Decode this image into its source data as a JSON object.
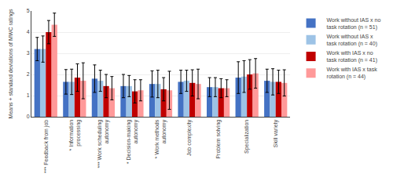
{
  "chart_data": {
    "type": "bar",
    "categories": [
      "*** Feedback from job",
      "* Information\nprocessing",
      "*** Work scheduling\nautonomy",
      "* Decision-making\nautonomy",
      "* Work methods\nautonomy",
      "Job complexity",
      "Problem solving",
      "Specialization",
      "Skill variety"
    ],
    "series": [
      {
        "name": "Work without IAS x no\ntask rotation (n = 51)",
        "color": "#4472C4",
        "values": [
          3.2,
          1.65,
          1.8,
          1.45,
          1.55,
          1.65,
          1.4,
          1.85,
          1.7
        ],
        "errors": [
          0.55,
          0.58,
          0.65,
          0.55,
          0.62,
          0.55,
          0.45,
          0.75,
          0.55
        ]
      },
      {
        "name": "Work without IAS x\ntask rotation (n = 40)",
        "color": "#9DC3E6",
        "values": [
          3.2,
          1.65,
          1.7,
          1.45,
          1.55,
          1.7,
          1.4,
          1.9,
          1.65
        ],
        "errors": [
          0.62,
          0.6,
          0.5,
          0.5,
          0.65,
          0.5,
          0.45,
          0.75,
          0.62
        ]
      },
      {
        "name": "Work with IAS x no\ntask rotation (n = 41)",
        "color": "#C00000",
        "values": [
          4.0,
          1.85,
          1.45,
          1.2,
          1.3,
          1.6,
          1.35,
          2.0,
          1.65
        ],
        "errors": [
          0.55,
          0.65,
          0.55,
          0.55,
          0.55,
          0.62,
          0.45,
          0.7,
          0.55
        ]
      },
      {
        "name": "Work with IAS x task\nrotation (n = 44)",
        "color": "#FF9999",
        "values": [
          4.35,
          1.7,
          1.35,
          1.25,
          1.25,
          1.55,
          1.35,
          2.05,
          1.6
        ],
        "errors": [
          0.55,
          0.85,
          0.55,
          0.5,
          0.9,
          0.7,
          0.4,
          0.7,
          0.62
        ]
      }
    ],
    "ylabel": "Means + standard deviations of MWC ratings",
    "ylim": [
      0,
      5
    ],
    "yticks": [
      0,
      1,
      2,
      3,
      4,
      5
    ],
    "grid": true,
    "legend": "right"
  }
}
